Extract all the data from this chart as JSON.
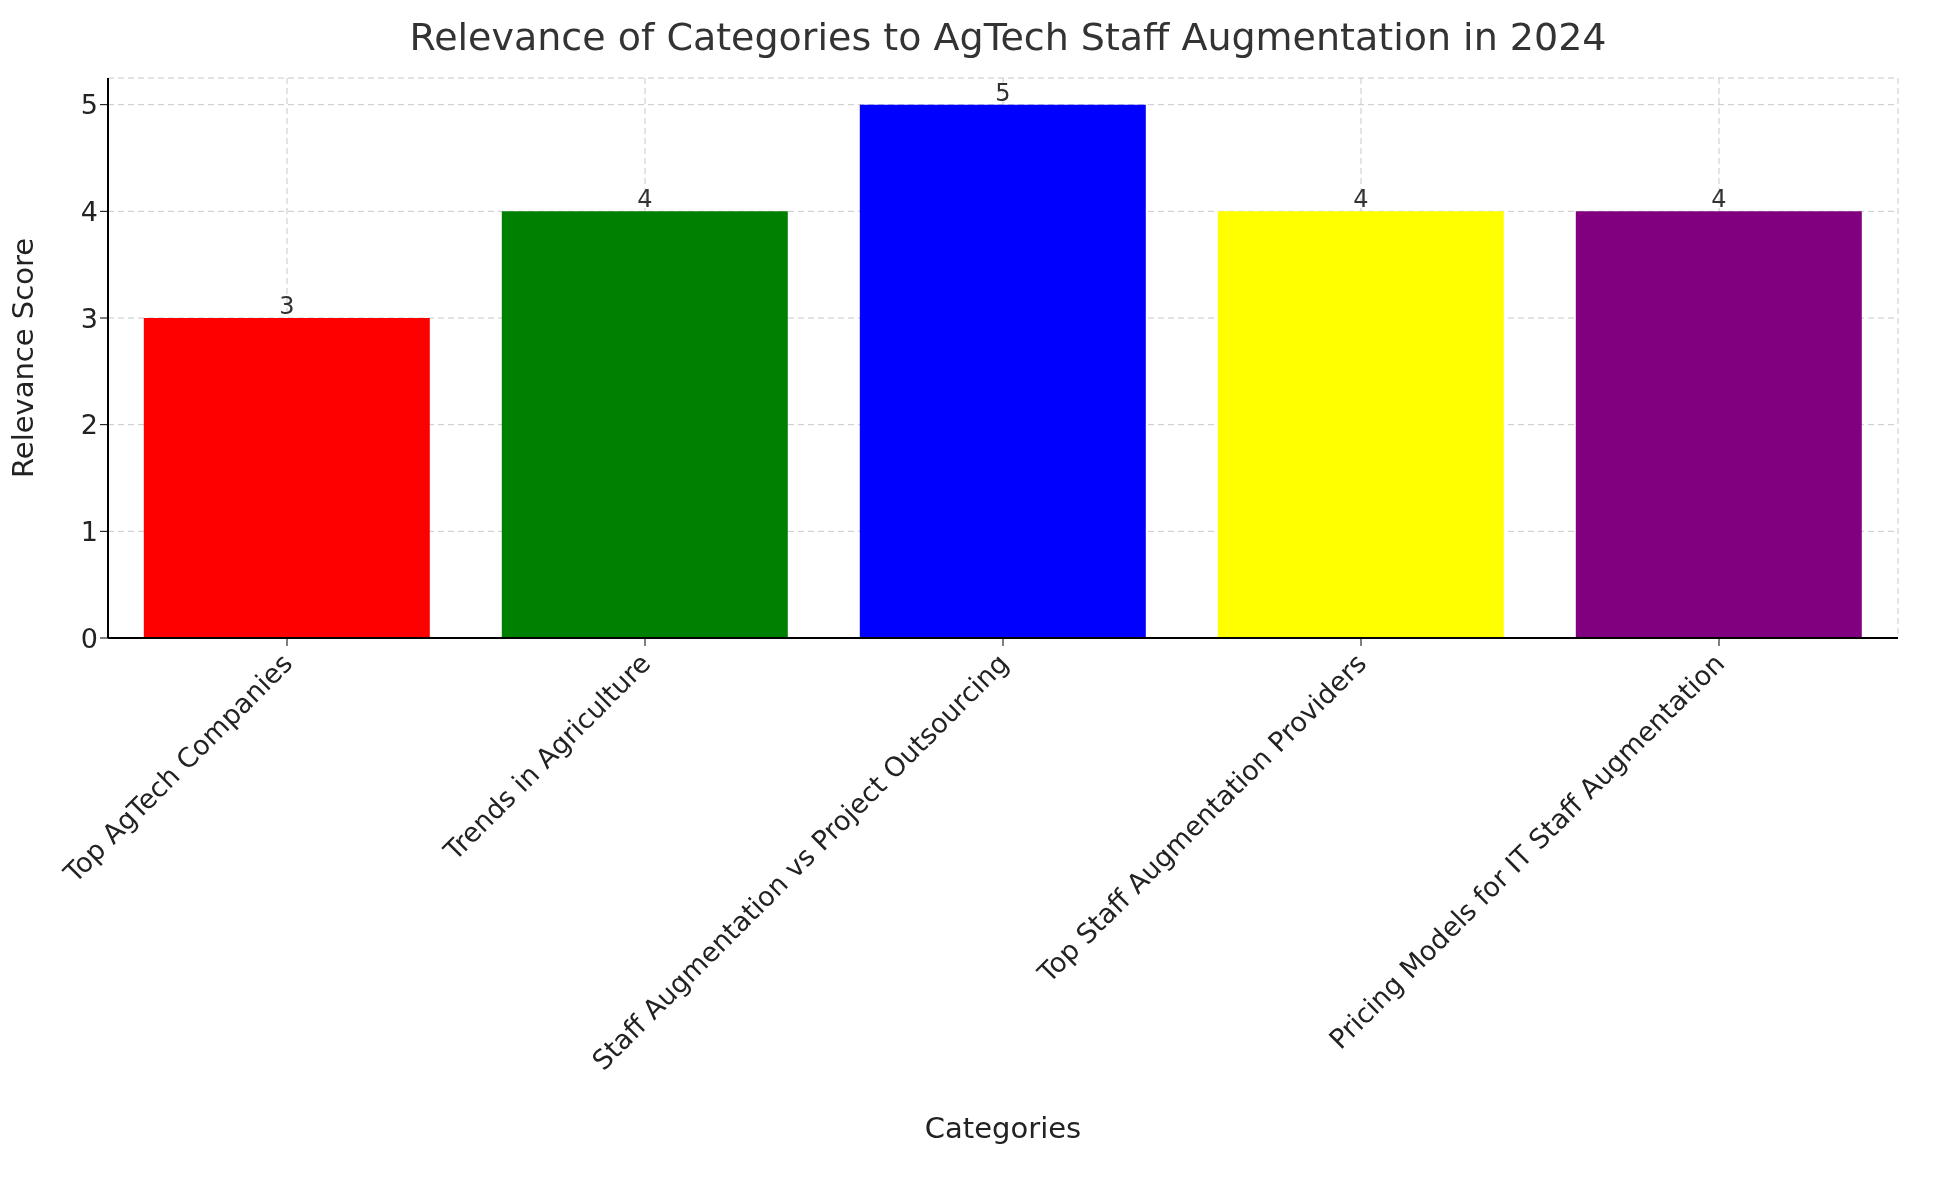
{
  "chart_data": {
    "type": "bar",
    "title": "Relevance of Categories to AgTech Staff Augmentation in 2024",
    "xlabel": "Categories",
    "ylabel": "Relevance Score",
    "categories": [
      "Top AgTech Companies",
      "Trends in Agriculture",
      "Staff Augmentation vs Project Outsourcing",
      "Top Staff Augmentation Providers",
      "Pricing Models for IT Staff Augmentation"
    ],
    "values": [
      3,
      4,
      5,
      4,
      4
    ],
    "colors": [
      "#ff0000",
      "#008000",
      "#0000ff",
      "#ffff00",
      "#800080"
    ],
    "ylim": [
      0,
      5.25
    ],
    "yticks": [
      0,
      1,
      2,
      3,
      4,
      5
    ],
    "grid": true,
    "data_labels": true
  }
}
